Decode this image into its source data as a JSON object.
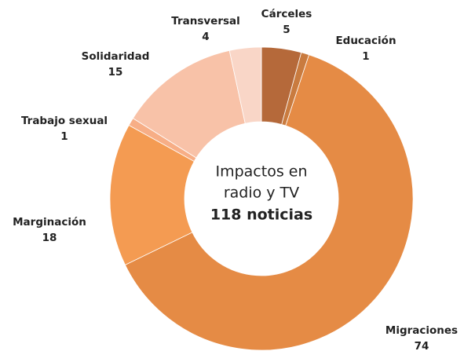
{
  "chart_data": {
    "type": "donut",
    "categories": [
      "Cárceles",
      "Educación",
      "Migraciones",
      "Marginación",
      "Trabajo sexual",
      "Solidaridad",
      "Transversal"
    ],
    "values": [
      5,
      1,
      74,
      18,
      1,
      15,
      4
    ],
    "colors": [
      "#b5693a",
      "#c97b3f",
      "#e58b45",
      "#f49b52",
      "#f7ae86",
      "#f8c2a8",
      "#f9d6c7"
    ],
    "center_text": [
      "Impactos en",
      "radio y TV"
    ],
    "center_total": "118 noticias"
  }
}
